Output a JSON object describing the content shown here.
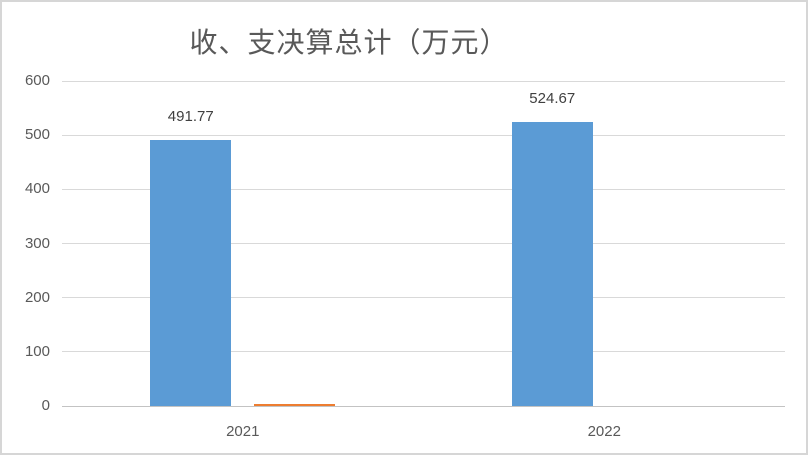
{
  "chart_data": {
    "type": "bar",
    "title": "收、支决算总计（万元）",
    "categories": [
      "2021",
      "2022"
    ],
    "series": [
      {
        "color": "#5b9bd5",
        "values": [
          491.77,
          524.67
        ],
        "labels": [
          "491.77",
          "524.67"
        ]
      },
      {
        "color": "#ed7d31",
        "values": [
          3.7,
          0
        ],
        "labels": [
          "",
          ""
        ]
      }
    ],
    "ylabel": "",
    "xlabel": "",
    "ylim": [
      0,
      600
    ],
    "yticks": [
      0,
      100,
      200,
      300,
      400,
      500,
      600
    ],
    "grid": true,
    "legend_position": "none",
    "colors": {
      "bar_blue": "#5b9bd5",
      "bar_orange": "#ed7d31",
      "gridline": "#d9d9d9",
      "axis_text": "#595959",
      "data_label_text": "#404040",
      "border": "#d6d6d6"
    }
  }
}
